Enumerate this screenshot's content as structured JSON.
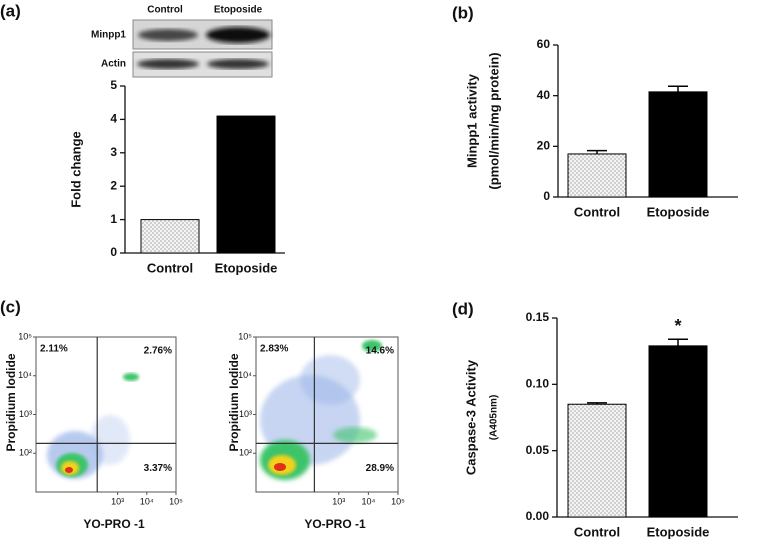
{
  "chart_data": [
    {
      "type": "bar",
      "label": "(a)",
      "blot": {
        "columns": [
          "Control",
          "Etoposide"
        ],
        "rows": [
          "Minpp1",
          "Actin"
        ]
      },
      "ylabel": [
        "Fold change"
      ],
      "categories": [
        "Control",
        "Etoposide"
      ],
      "values": [
        1,
        4.1
      ],
      "color": "#000000",
      "fills": [
        "dotted",
        "solid"
      ],
      "ylim": [
        0,
        5
      ],
      "yticks": [
        0,
        1,
        2,
        3,
        4,
        5
      ]
    },
    {
      "type": "bar",
      "label": "(b)",
      "ylabel": [
        "Minpp1 activity",
        "(pmol/min/mg protein)"
      ],
      "categories": [
        "Control",
        "Etoposide"
      ],
      "values": [
        17,
        41.5
      ],
      "errors": [
        1.3,
        2.2
      ],
      "color": "#000000",
      "fills": [
        "dotted",
        "solid"
      ],
      "ylim": [
        0,
        60
      ],
      "yticks": [
        0,
        20,
        40,
        60
      ]
    },
    {
      "type": "dotplot",
      "label": "(c)",
      "xlabel": "YO-PRO -1",
      "ylabel": "Propidium Iodide",
      "log": true,
      "xlim": [
        1.6,
        100000
      ],
      "ylim": [
        10,
        100000
      ],
      "xticks": [
        {
          "value": 1000,
          "label": "10³"
        },
        {
          "value": 10000,
          "label": "10⁴"
        },
        {
          "value": 100000,
          "label": "10⁵"
        }
      ],
      "yticks": [
        {
          "value": 100,
          "label": "10²"
        },
        {
          "value": 1000,
          "label": "10³"
        },
        {
          "value": 10000,
          "label": "10⁴"
        },
        {
          "value": 100000,
          "label": "10⁵"
        }
      ],
      "gate_x": 200,
      "gate_y": 180,
      "quadrants": {
        "upper_left": "2.11%",
        "upper_right": "2.76%",
        "lower_right": "3.37%"
      }
    },
    {
      "type": "dotplot",
      "xlabel": "YO-PRO -1",
      "ylabel": "Propidium Iodide",
      "log": true,
      "xlim": [
        1.6,
        100000
      ],
      "ylim": [
        10,
        100000
      ],
      "xticks": [
        {
          "value": 1000,
          "label": "10³"
        },
        {
          "value": 10000,
          "label": "10⁴"
        },
        {
          "value": 100000,
          "label": "10⁵"
        }
      ],
      "yticks": [
        {
          "value": 100,
          "label": "10²"
        },
        {
          "value": 1000,
          "label": "10³"
        },
        {
          "value": 10000,
          "label": "10⁴"
        },
        {
          "value": 100000,
          "label": "10⁵"
        }
      ],
      "gate_x": 150,
      "gate_y": 180,
      "quadrants": {
        "upper_left": "2.83%",
        "upper_right": "14.6%",
        "lower_right": "28.9%"
      }
    },
    {
      "type": "bar",
      "label": "(d)",
      "ylabel": [
        "Caspase-3 Activity",
        "(A405nm)"
      ],
      "categories": [
        "Control",
        "Etoposide"
      ],
      "values": [
        0.085,
        0.129
      ],
      "errors": [
        0.001,
        0.005
      ],
      "color": "#000000",
      "fills": [
        "dotted",
        "solid"
      ],
      "ylim": [
        0,
        0.15
      ],
      "yticks": [
        {
          "value": 0,
          "label": "0.00"
        },
        {
          "value": 0.05,
          "label": "0.05"
        },
        {
          "value": 0.1,
          "label": "0.10"
        },
        {
          "value": 0.15,
          "label": "0.15"
        }
      ],
      "annotations": [
        {
          "text": "*",
          "category": "Etoposide"
        }
      ]
    }
  ]
}
